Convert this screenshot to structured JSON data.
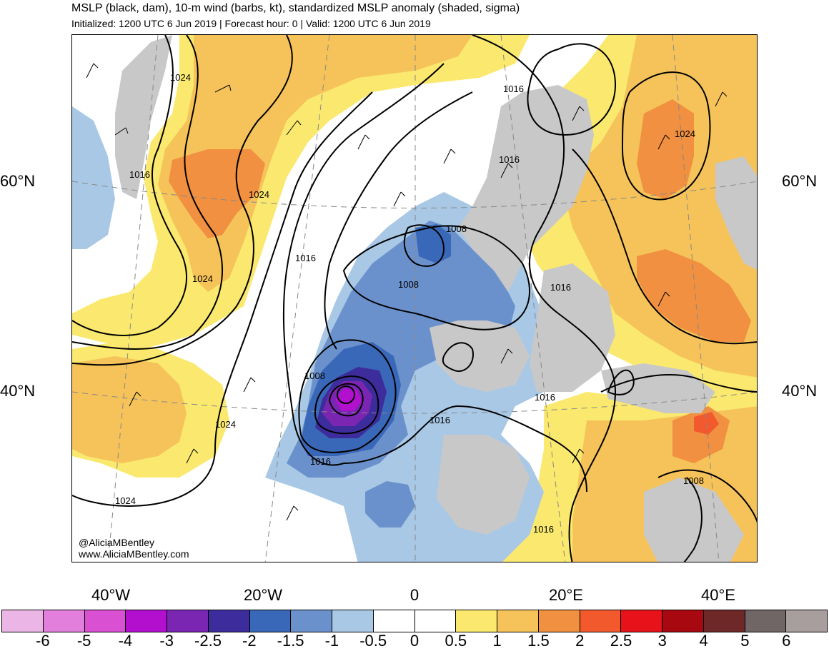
{
  "header": {
    "title": "MSLP (black, dam), 10-m wind (barbs, kt), standardized MSLP anomaly (shaded, sigma)",
    "subtitle": "Initialized: 1200 UTC 6 Jun 2019 | Forecast hour: 0 | Valid: 1200 UTC 6 Jun 2019"
  },
  "map": {
    "lat_labels": [
      "60°N",
      "40°N"
    ],
    "lon_labels": [
      "40°W",
      "20°W",
      "0",
      "20°E",
      "40°E"
    ],
    "contour_labels": [
      "1024",
      "1016",
      "1024",
      "1024",
      "1016",
      "1008",
      "1008",
      "1016",
      "1008",
      "1016",
      "1016",
      "1024",
      "1016",
      "1016",
      "1024",
      "1008",
      "1016",
      "1016",
      "1024"
    ],
    "colors": {
      "land": "#c8c8c8",
      "ocean": "#ffffff",
      "contour": "#000000",
      "coast": "#555555"
    }
  },
  "credits": {
    "handle": "@AliciaMBentley",
    "site": "www.AliciaMBentley.com"
  },
  "colorbar": {
    "colors": [
      "#ebb6e6",
      "#e27fdc",
      "#d950d3",
      "#b30fcf",
      "#7a26b3",
      "#3d2d9c",
      "#3a68b8",
      "#6b91cc",
      "#a8c8e6",
      "#ffffff",
      "#ffffff",
      "#fae96e",
      "#f5c35a",
      "#f09040",
      "#f25a2e",
      "#e8121a",
      "#a8080f",
      "#6e2828",
      "#706666",
      "#a89e9e"
    ],
    "labels": [
      "-6",
      "-5",
      "-4",
      "-3",
      "-2.5",
      "-2",
      "-1.5",
      "-1",
      "-0.5",
      "0",
      "0.5",
      "1",
      "1.5",
      "2",
      "2.5",
      "3",
      "4",
      "5",
      "6"
    ]
  }
}
